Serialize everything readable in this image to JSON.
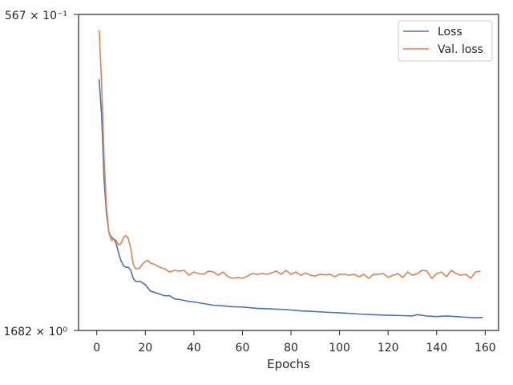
{
  "chart_data": {
    "type": "line",
    "title": "",
    "xlabel": "Epochs",
    "ylabel": "",
    "xlim": [
      -7.5,
      165.5
    ],
    "ylim_labels": {
      "top": "567 × 10⁻¹",
      "bottom": "1682 × 10⁰"
    },
    "xticks": [
      0,
      20,
      40,
      60,
      80,
      100,
      120,
      140,
      160
    ],
    "grid": false,
    "legend_position": "top-right",
    "scale_note": "y-values below are read as fractions of the plot height (0 = bottom tick, 1 = top tick)",
    "series": [
      {
        "name": "Loss",
        "color": "#4c72b0",
        "x": [
          1,
          2,
          3,
          4,
          5,
          6,
          7,
          8,
          9,
          10,
          11,
          12,
          13,
          14,
          15,
          16,
          17,
          18,
          20,
          22,
          24,
          26,
          28,
          30,
          32,
          34,
          36,
          38,
          40,
          44,
          48,
          52,
          56,
          60,
          66,
          72,
          78,
          84,
          90,
          96,
          102,
          108,
          114,
          120,
          126,
          130,
          132,
          136,
          140,
          144,
          148,
          152,
          156,
          159
        ],
        "y": [
          0.795,
          0.68,
          0.48,
          0.37,
          0.31,
          0.295,
          0.29,
          0.275,
          0.245,
          0.22,
          0.205,
          0.2,
          0.2,
          0.19,
          0.165,
          0.155,
          0.155,
          0.155,
          0.145,
          0.125,
          0.12,
          0.115,
          0.11,
          0.11,
          0.1,
          0.098,
          0.095,
          0.092,
          0.09,
          0.085,
          0.08,
          0.078,
          0.075,
          0.074,
          0.07,
          0.068,
          0.066,
          0.062,
          0.06,
          0.057,
          0.055,
          0.052,
          0.05,
          0.048,
          0.047,
          0.046,
          0.05,
          0.046,
          0.044,
          0.046,
          0.044,
          0.042,
          0.04,
          0.041
        ]
      },
      {
        "name": "Val. loss",
        "color": "#dd8452",
        "x": [
          1,
          2,
          3,
          4,
          5,
          6,
          7,
          8,
          9,
          10,
          11,
          12,
          13,
          14,
          15,
          16,
          17,
          18,
          19,
          20,
          21,
          22,
          24,
          26,
          28,
          30,
          32,
          34,
          36,
          38,
          40,
          42,
          44,
          46,
          48,
          50,
          52,
          54,
          56,
          58,
          60,
          62,
          64,
          66,
          68,
          70,
          72,
          74,
          76,
          78,
          80,
          82,
          84,
          86,
          88,
          90,
          92,
          94,
          96,
          98,
          100,
          102,
          104,
          106,
          108,
          110,
          112,
          114,
          116,
          118,
          120,
          122,
          124,
          126,
          128,
          130,
          132,
          134,
          136,
          138,
          140,
          142,
          144,
          146,
          148,
          150,
          152,
          154,
          156,
          158
        ],
        "y": [
          0.95,
          0.78,
          0.55,
          0.39,
          0.31,
          0.285,
          0.29,
          0.285,
          0.27,
          0.275,
          0.295,
          0.3,
          0.29,
          0.26,
          0.21,
          0.195,
          0.195,
          0.2,
          0.212,
          0.218,
          0.222,
          0.214,
          0.208,
          0.2,
          0.195,
          0.185,
          0.19,
          0.188,
          0.19,
          0.175,
          0.185,
          0.18,
          0.178,
          0.188,
          0.185,
          0.175,
          0.185,
          0.17,
          0.165,
          0.168,
          0.165,
          0.172,
          0.18,
          0.178,
          0.18,
          0.178,
          0.182,
          0.188,
          0.178,
          0.19,
          0.178,
          0.185,
          0.175,
          0.182,
          0.175,
          0.172,
          0.178,
          0.176,
          0.178,
          0.17,
          0.178,
          0.178,
          0.175,
          0.178,
          0.17,
          0.178,
          0.165,
          0.178,
          0.178,
          0.18,
          0.168,
          0.175,
          0.18,
          0.168,
          0.185,
          0.175,
          0.18,
          0.19,
          0.188,
          0.165,
          0.18,
          0.185,
          0.17,
          0.19,
          0.18,
          0.175,
          0.178,
          0.165,
          0.185,
          0.188
        ]
      }
    ]
  }
}
